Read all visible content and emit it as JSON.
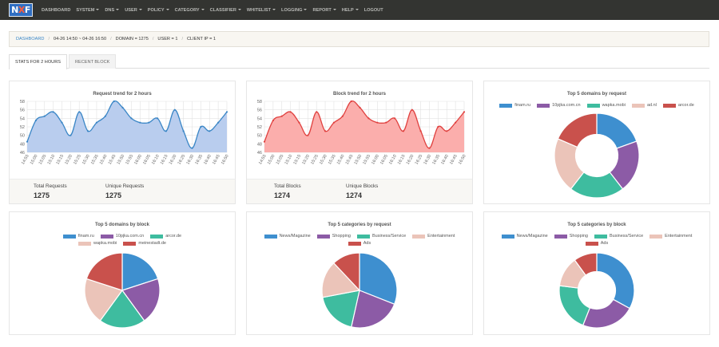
{
  "brand": {
    "logo": "NXF"
  },
  "nav": {
    "items": [
      {
        "label": "DASHBOARD",
        "dropdown": false
      },
      {
        "label": "SYSTEM",
        "dropdown": true
      },
      {
        "label": "DNS",
        "dropdown": true
      },
      {
        "label": "USER",
        "dropdown": true
      },
      {
        "label": "POLICY",
        "dropdown": true
      },
      {
        "label": "CATEGORY",
        "dropdown": true
      },
      {
        "label": "CLASSIFIER",
        "dropdown": true
      },
      {
        "label": "WHITELIST",
        "dropdown": true
      },
      {
        "label": "LOGGING",
        "dropdown": true
      },
      {
        "label": "REPORT",
        "dropdown": true
      },
      {
        "label": "HELP",
        "dropdown": true
      },
      {
        "label": "LOGOUT",
        "dropdown": false
      }
    ]
  },
  "breadcrumb": {
    "home": "DASHBOARD",
    "range": "04-26 14:50 ~ 04-26 16:50",
    "domain": "DOMAIN = 1275",
    "user": "USER = 1",
    "client_ip": "CLIENT IP = 1"
  },
  "tabs": [
    {
      "label": "STATS FOR 2 HOURS",
      "active": true
    },
    {
      "label": "RECENT BLOCK",
      "active": false
    }
  ],
  "colors": {
    "blue": "#3e8fcf",
    "purple": "#8c5ba6",
    "teal": "#3ebc9f",
    "pink": "#ebc4b9",
    "red": "#c9514c",
    "request_line": "#3a86c6",
    "request_fill": "#b9cdee",
    "block_line": "#e0413f",
    "block_fill": "#fbaeac"
  },
  "stats": {
    "requests": {
      "total_label": "Total Requests",
      "total": "1275",
      "unique_label": "Unique Requests",
      "unique": "1275"
    },
    "blocks": {
      "total_label": "Total Blocks",
      "total": "1274",
      "unique_label": "Unique Blocks",
      "unique": "1274"
    }
  },
  "chart_data": [
    {
      "type": "area",
      "title": "Request trend for 2 hours",
      "ylim": [
        46,
        58
      ],
      "yticks": [
        46,
        48,
        50,
        52,
        54,
        56,
        58
      ],
      "x": [
        "14:55",
        "15:00",
        "15:05",
        "15:10",
        "15:15",
        "15:20",
        "15:25",
        "15:30",
        "15:35",
        "15:40",
        "15:45",
        "15:50",
        "15:55",
        "16:00",
        "16:05",
        "16:10",
        "16:15",
        "16:20",
        "16:25",
        "16:30",
        "16:35",
        "16:40",
        "16:45",
        "16:50"
      ],
      "values": [
        48.5,
        53.5,
        54.5,
        55.5,
        53,
        50,
        55.5,
        51,
        53,
        54.5,
        58,
        56.5,
        54,
        53,
        53,
        54,
        51,
        56,
        51,
        47,
        52,
        51,
        53,
        55.5
      ],
      "grid": true
    },
    {
      "type": "area",
      "title": "Block trend for 2 hours",
      "ylim": [
        46,
        58
      ],
      "yticks": [
        46,
        48,
        50,
        52,
        54,
        56,
        58
      ],
      "x": [
        "14:55",
        "15:00",
        "15:05",
        "15:10",
        "15:15",
        "15:20",
        "15:25",
        "15:30",
        "15:35",
        "15:40",
        "15:45",
        "15:50",
        "15:55",
        "16:00",
        "16:05",
        "16:10",
        "16:15",
        "16:20",
        "16:25",
        "16:30",
        "16:35",
        "16:40",
        "16:45",
        "16:50"
      ],
      "values": [
        48.5,
        53.5,
        54.5,
        55.5,
        53,
        50,
        55.5,
        51,
        53,
        54.5,
        58,
        56.5,
        54,
        53,
        53,
        54,
        51,
        56,
        51,
        47,
        52,
        51,
        53,
        55.5
      ],
      "grid": true
    },
    {
      "type": "pie",
      "donut": true,
      "title": "Top 5 domains by request",
      "labels": [
        "finam.ru",
        "10pjka.com.cn",
        "wapka.mobi",
        "ad.nl",
        "arcor.de"
      ],
      "values": [
        19.5,
        20,
        21,
        21,
        18.5
      ]
    },
    {
      "type": "pie",
      "donut": false,
      "title": "Top 5 domains by block",
      "labels": [
        "finam.ru",
        "10pjka.com.cn",
        "arcor.de",
        "wapka.mobi",
        "meinestadt.de"
      ],
      "values": [
        20,
        20,
        20,
        20,
        20
      ]
    },
    {
      "type": "pie",
      "donut": false,
      "title": "Top 5 categories by request",
      "labels": [
        "News/Magazine",
        "Shopping",
        "Business/Service",
        "Entertainment",
        "Ads"
      ],
      "values": [
        31,
        22.5,
        18.5,
        16,
        12
      ]
    },
    {
      "type": "pie",
      "donut": true,
      "title": "Top 5 categories by block",
      "labels": [
        "News/Magazine",
        "Shopping",
        "Business/Service",
        "Entertainment",
        "Ads"
      ],
      "values": [
        33,
        23,
        21,
        13,
        10
      ]
    }
  ]
}
